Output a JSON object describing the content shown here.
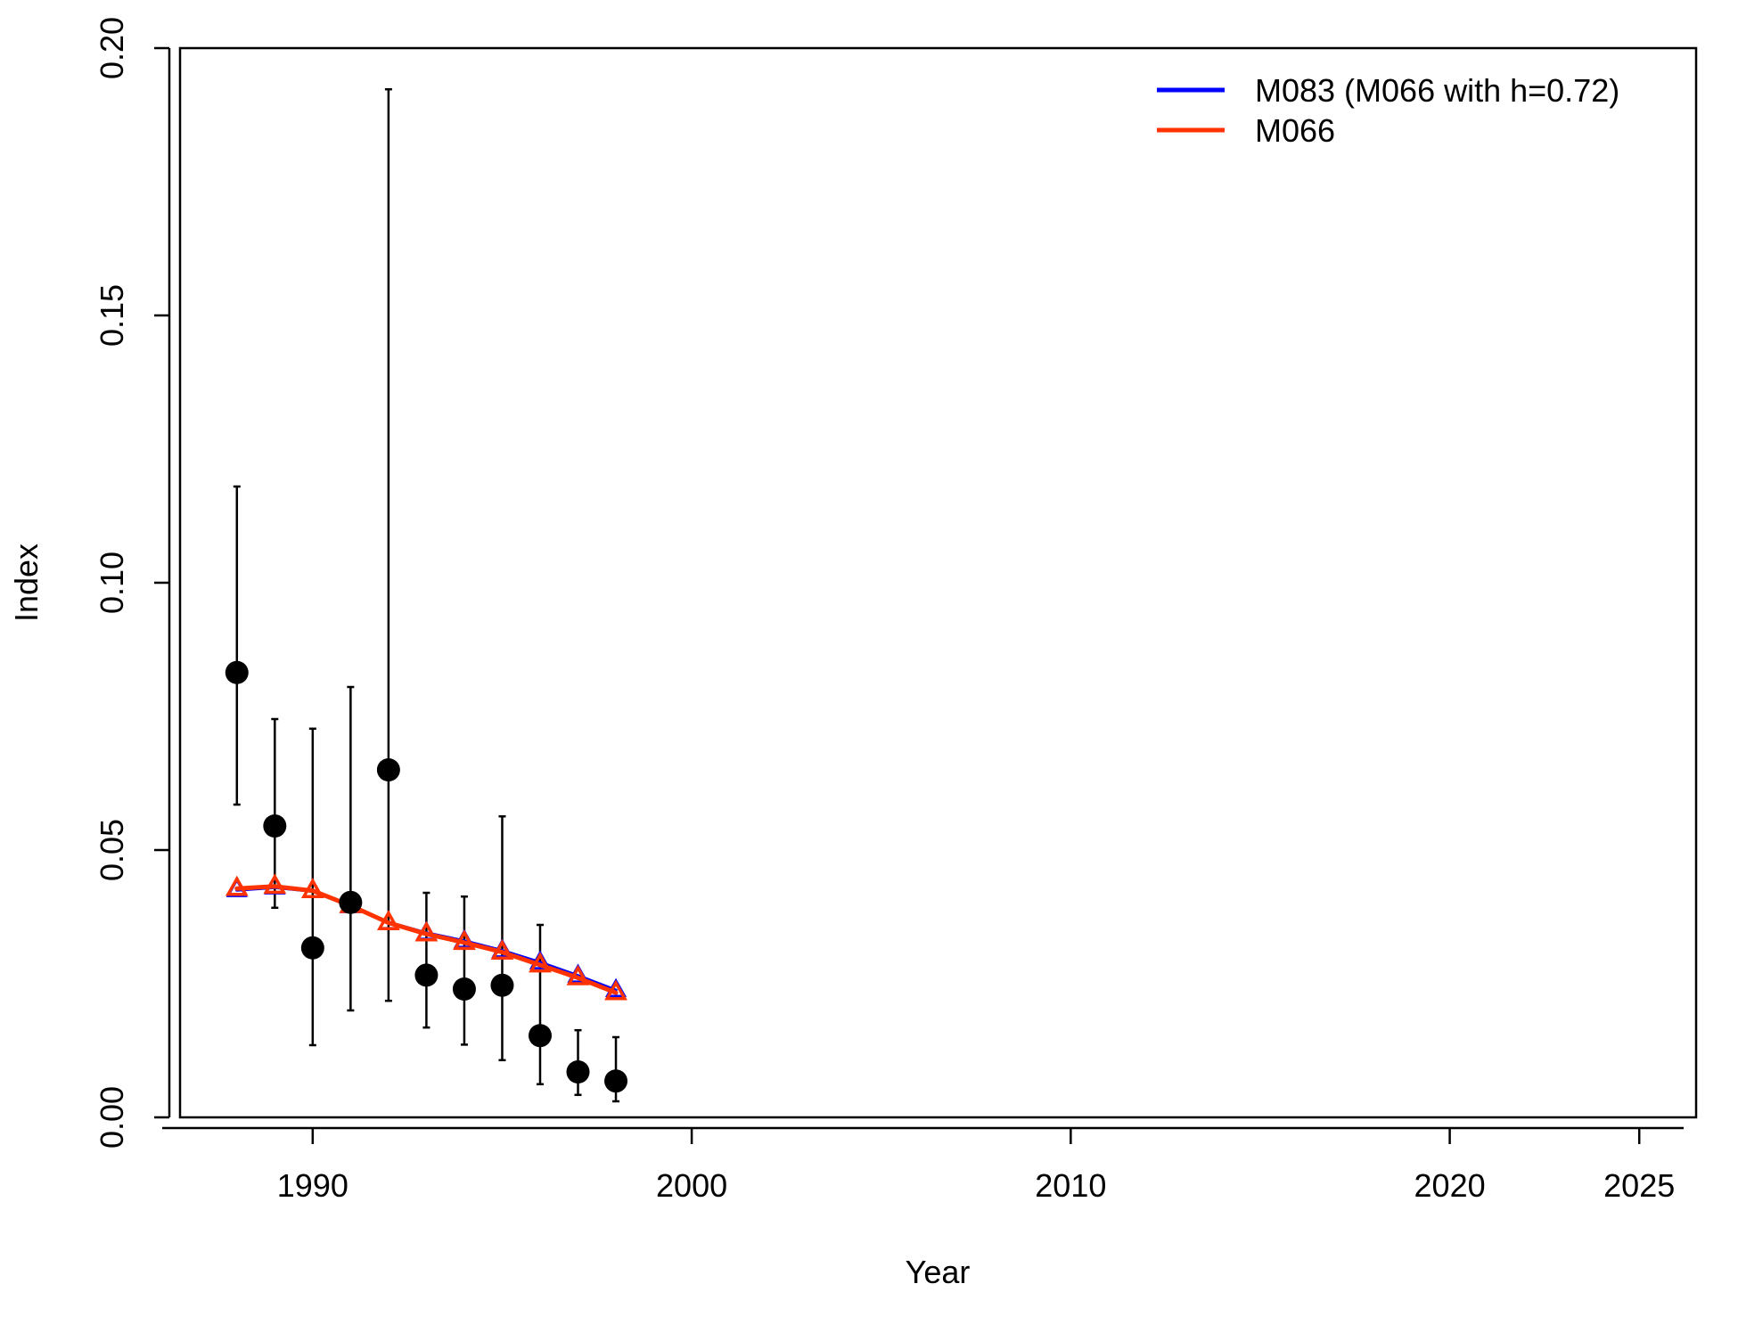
{
  "chart_data": {
    "type": "line",
    "title": "",
    "xlabel": "Year",
    "ylabel": "Index",
    "xlim": [
      1986.5,
      2026.5
    ],
    "ylim": [
      0,
      0.2
    ],
    "x_ticks": [
      1990,
      2000,
      2010,
      2020,
      2025
    ],
    "x_tick_labels": [
      "1990",
      "2000",
      "2010",
      "2020",
      "2025"
    ],
    "y_ticks": [
      0,
      0.05,
      0.1,
      0.15,
      0.2
    ],
    "y_tick_labels": [
      "0.00",
      "0.05",
      "0.10",
      "0.15",
      "0.20"
    ],
    "grid": false,
    "legend_position": "top-right",
    "observed": {
      "x": [
        1988,
        1989,
        1990,
        1991,
        1992,
        1993,
        1994,
        1995,
        1996,
        1997,
        1998
      ],
      "y": [
        0.0832,
        0.0545,
        0.0317,
        0.0402,
        0.065,
        0.0266,
        0.024,
        0.0247,
        0.0153,
        0.0085,
        0.0068
      ],
      "lower": [
        0.0585,
        0.0392,
        0.0135,
        0.02,
        0.0218,
        0.0168,
        0.0136,
        0.0107,
        0.0062,
        0.0042,
        0.003
      ],
      "upper": [
        0.118,
        0.0745,
        0.0727,
        0.0805,
        0.1923,
        0.042,
        0.0413,
        0.0563,
        0.036,
        0.0163,
        0.015
      ],
      "color": "#000000"
    },
    "series": [
      {
        "name": "M083 (M066 with h=0.72)",
        "x": [
          1988,
          1989,
          1990,
          1991,
          1992,
          1993,
          1994,
          1995,
          1996,
          1997,
          1998
        ],
        "values": [
          0.0425,
          0.043,
          0.0423,
          0.0395,
          0.0365,
          0.0345,
          0.033,
          0.0312,
          0.029,
          0.0265,
          0.0238
        ],
        "color": "#0000ff"
      },
      {
        "name": "M066",
        "x": [
          1988,
          1989,
          1990,
          1991,
          1992,
          1993,
          1994,
          1995,
          1996,
          1997,
          1998
        ],
        "values": [
          0.0428,
          0.0432,
          0.0424,
          0.0396,
          0.0364,
          0.0343,
          0.0327,
          0.0309,
          0.0285,
          0.0261,
          0.0233
        ],
        "color": "#ff3300"
      }
    ]
  }
}
